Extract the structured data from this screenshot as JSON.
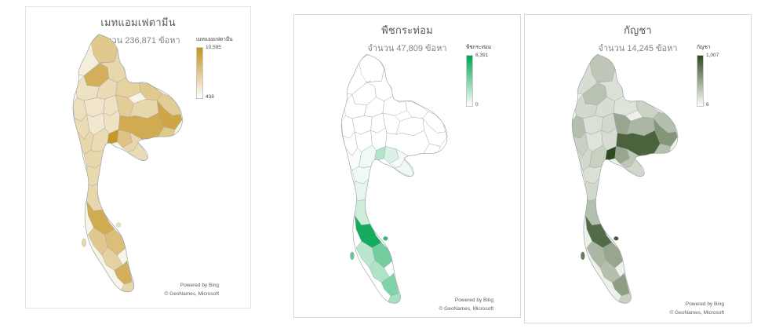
{
  "chart_data": [
    {
      "type": "choropleth",
      "title": "เมทแอมเฟตามีน",
      "subtitle": "จำนวน 236,871 ข้อหา",
      "legend": {
        "title": "เมทแอมเฟตามีน",
        "max": "10,595",
        "min": "438"
      },
      "colors": {
        "low": "#f8f4e8",
        "high": "#c4921e"
      },
      "attribution": [
        "Powered by Bing",
        "© GeoNames, Microsoft"
      ],
      "region_intensities": [
        0.06,
        0.45,
        0.7,
        0.3,
        0.18,
        0.25,
        0.35,
        0.45,
        0.4,
        0.22,
        0.15,
        0.2,
        0.4,
        0.3,
        0.8,
        0.25,
        0.12,
        0.18,
        0.75,
        0.45,
        0.3,
        0.25,
        0.95,
        0.5,
        0.3,
        0.25,
        0.3,
        0.28,
        0.3,
        0.75,
        0.55,
        0.45,
        0.35,
        0.7,
        0.3
      ],
      "island_intensities": [
        0.3,
        0.2
      ]
    },
    {
      "type": "choropleth",
      "title": "พืชกระท่อม",
      "subtitle": "จำนวน 47,809 ข้อหา",
      "legend": {
        "title": "พืชกระท่อม",
        "max": "6,391",
        "min": "0"
      },
      "colors": {
        "low": "#ffffff",
        "high": "#00a651"
      },
      "attribution": [
        "Powered by Bing",
        "© GeoNames, Microsoft"
      ],
      "region_intensities": [
        0,
        0,
        0,
        0,
        0,
        0,
        0,
        0,
        0,
        0,
        0,
        0,
        0,
        0,
        0,
        0,
        0,
        0,
        0,
        0,
        0.02,
        0.06,
        0.3,
        0.15,
        0.04,
        0.06,
        0.06,
        0.1,
        0.2,
        0.92,
        0.55,
        0.28,
        0.32,
        0.5,
        0.35
      ],
      "island_intensities": [
        0.6,
        0.8
      ]
    },
    {
      "type": "choropleth",
      "title": "กัญชา",
      "subtitle": "จำนวน 14,245 ข้อหา",
      "legend": {
        "title": "กัญชา",
        "max": "1,007",
        "min": "6"
      },
      "colors": {
        "low": "#eef1ea",
        "high": "#2e4a1f"
      },
      "attribution": [
        "Powered by Bing",
        "© GeoNames, Microsoft"
      ],
      "region_intensities": [
        0.12,
        0.25,
        0.28,
        0.1,
        0.15,
        0.12,
        0.08,
        0.18,
        0.3,
        0.3,
        0.1,
        0.15,
        0.45,
        0.35,
        0.55,
        0.2,
        0.08,
        0.12,
        0.85,
        0.3,
        0.15,
        0.2,
        1.0,
        0.45,
        0.25,
        0.15,
        0.1,
        0.15,
        0.3,
        0.8,
        0.45,
        0.35,
        0.3,
        0.5,
        0.2
      ],
      "island_intensities": [
        0.7,
        0.9
      ]
    }
  ]
}
